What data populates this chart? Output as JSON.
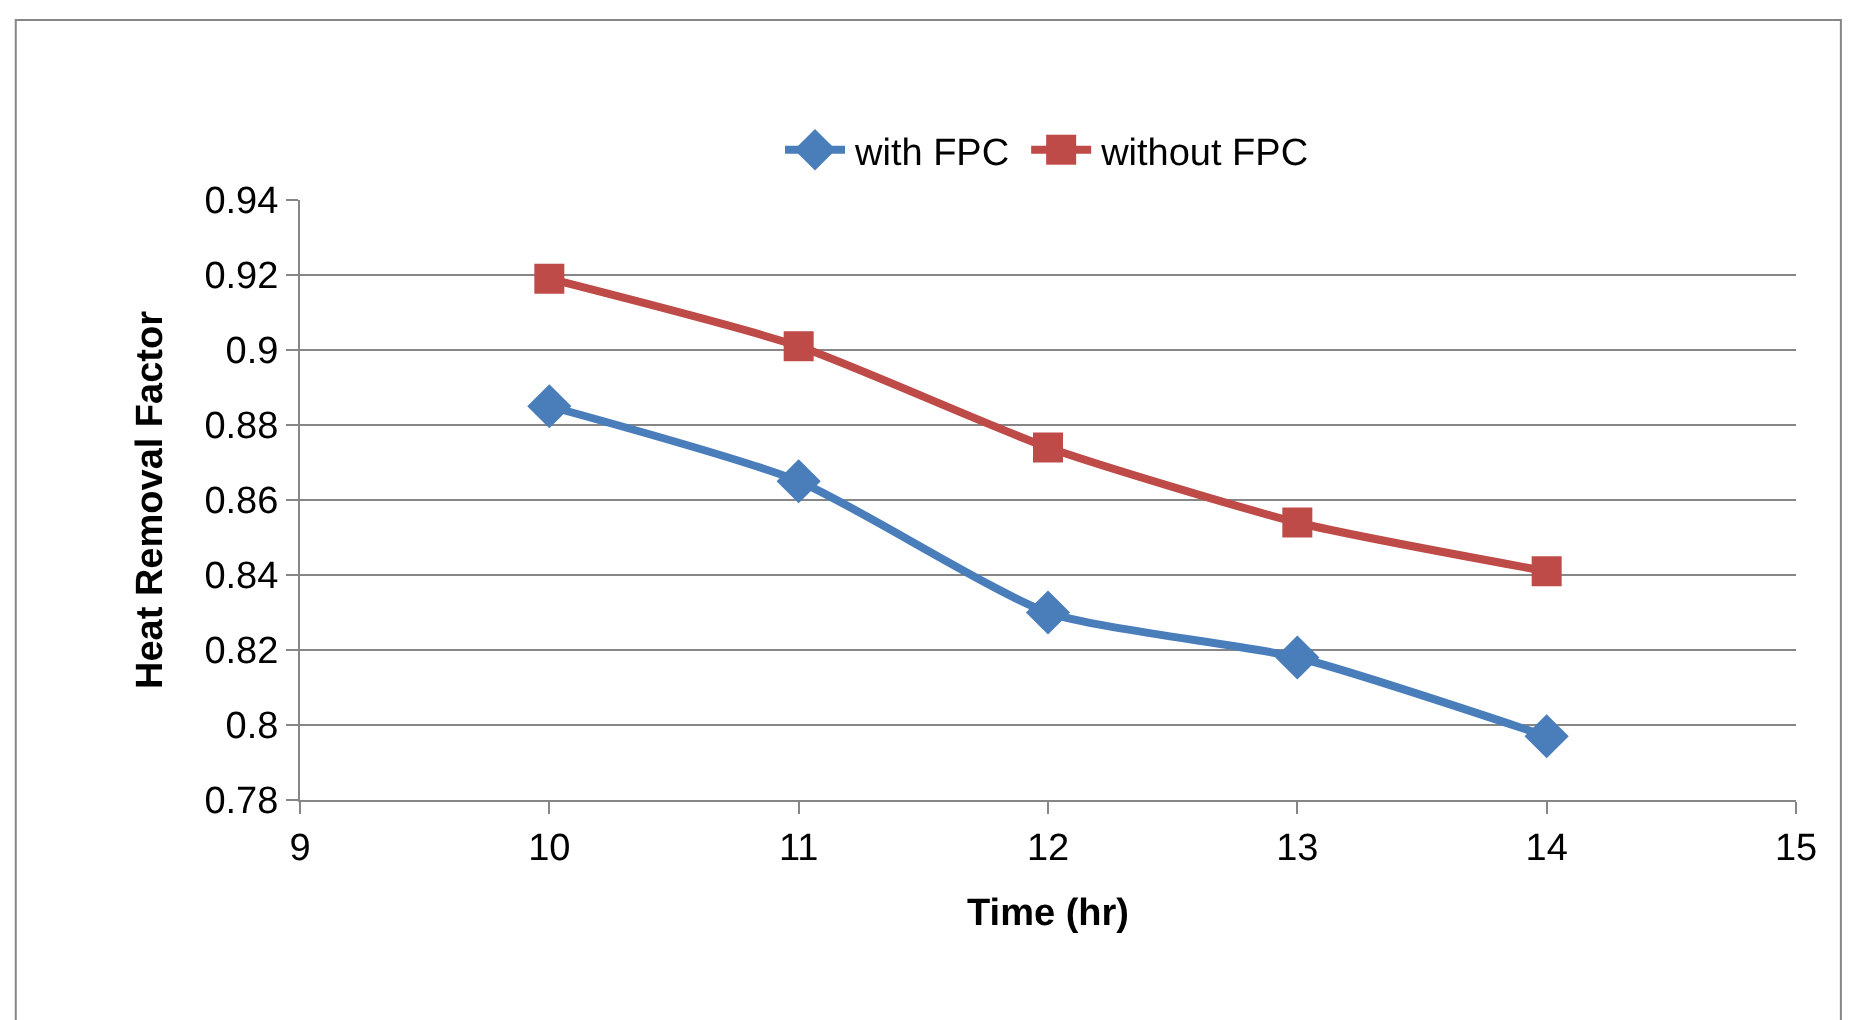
{
  "chart_data": {
    "type": "line",
    "xlabel": "Time (hr)",
    "ylabel": "Heat Removal Factor",
    "x": [
      10,
      11,
      12,
      13,
      14
    ],
    "series": [
      {
        "name": "with FPC",
        "color": "#4a7ebb",
        "marker": "diamond",
        "values": [
          0.885,
          0.865,
          0.83,
          0.818,
          0.797
        ]
      },
      {
        "name": "without FPC",
        "color": "#be4b48",
        "marker": "square",
        "values": [
          0.919,
          0.901,
          0.874,
          0.854,
          0.841
        ]
      }
    ],
    "xlim": [
      9,
      15
    ],
    "xticks": [
      9,
      10,
      11,
      12,
      13,
      14,
      15
    ],
    "ylim": [
      0.78,
      0.94
    ],
    "yticks": [
      0.78,
      0.8,
      0.82,
      0.84,
      0.86,
      0.88,
      0.9,
      0.92,
      0.94
    ],
    "grid": "y",
    "legend": "top",
    "line_style": "solid"
  }
}
